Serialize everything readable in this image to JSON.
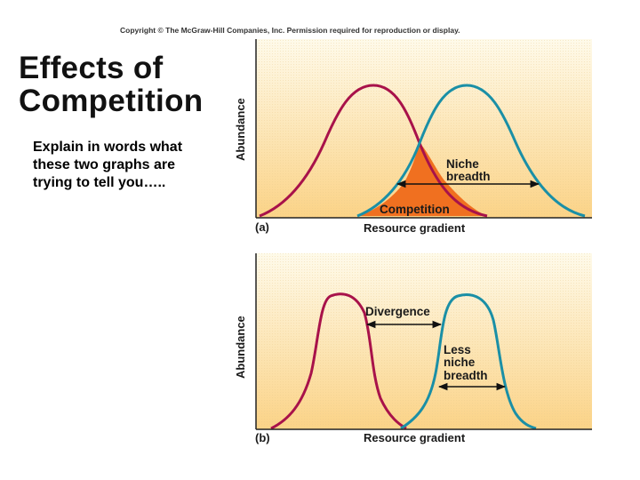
{
  "copyright": "Copyright © The McGraw-Hill Companies, Inc. Permission required for reproduction or display.",
  "title_line1": "Effects of",
  "title_line2": "Competition",
  "prompt": "Explain in words what these two graphs are trying to tell you…..",
  "colors": {
    "species1": "#a8124a",
    "species2": "#1a8fa6",
    "overlap": "#f07020",
    "background_top": "#fdf7e0",
    "background_bottom": "#fbd489"
  },
  "graph_a": {
    "panel_label": "(a)",
    "y_label": "Abundance",
    "x_label": "Resource gradient",
    "niche_breadth_label": [
      "Niche",
      "breadth"
    ],
    "competition_label": "Competition"
  },
  "graph_b": {
    "panel_label": "(b)",
    "y_label": "Abundance",
    "x_label": "Resource gradient",
    "divergence_label": "Divergence",
    "less_niche_breadth_label": [
      "Less",
      "niche",
      "breadth"
    ]
  }
}
